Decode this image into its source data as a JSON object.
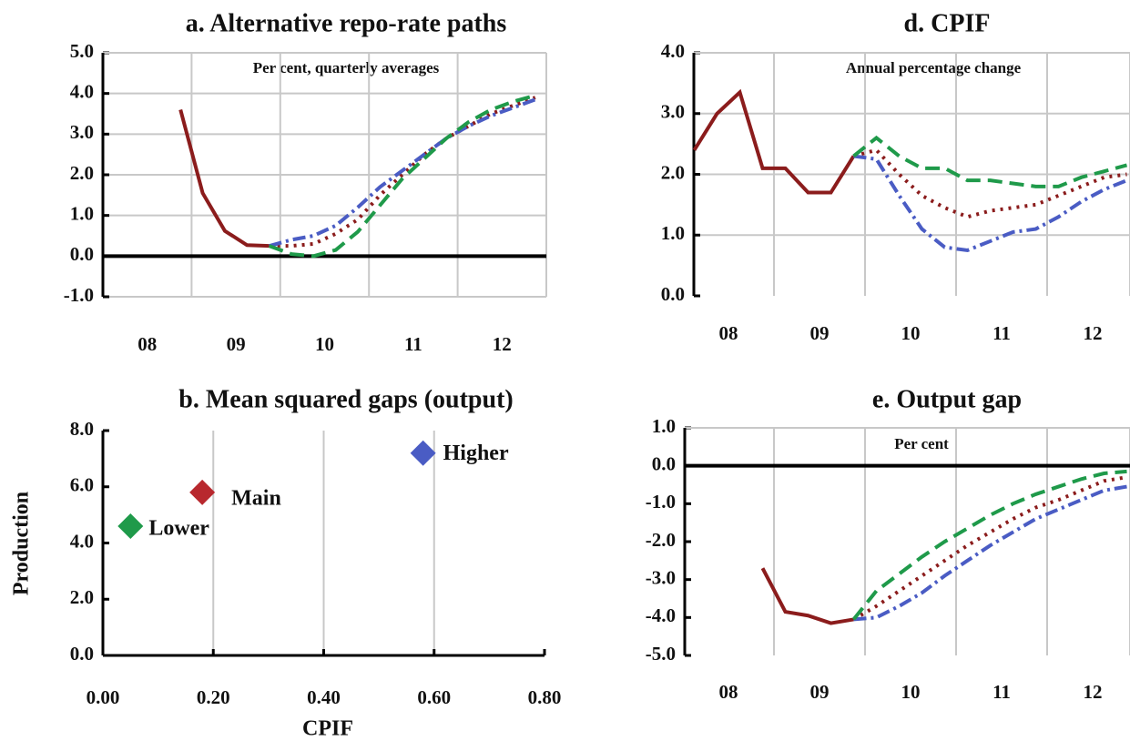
{
  "chart_data": [
    {
      "type": "line",
      "title": "a. Alternative repo-rate paths",
      "subtitle": "Per cent, quarterly averages",
      "x": [
        2008.125,
        2008.375,
        2008.625,
        2008.875,
        2009.125,
        2009.375,
        2009.625,
        2009.875,
        2010.125,
        2010.375,
        2010.625,
        2010.875,
        2011.125,
        2011.375,
        2011.625,
        2011.875,
        2012.125,
        2012.375,
        2012.625,
        2012.875
      ],
      "xlim": [
        2008,
        2013
      ],
      "xticks": [
        {
          "value": 2008.5,
          "label": "08"
        },
        {
          "value": 2009.5,
          "label": "09"
        },
        {
          "value": 2010.5,
          "label": "10"
        },
        {
          "value": 2011.5,
          "label": "11"
        },
        {
          "value": 2012.5,
          "label": "12"
        }
      ],
      "xgrid": [
        2009,
        2010,
        2011,
        2012
      ],
      "ylim": [
        -1,
        5
      ],
      "yticks": [
        {
          "value": -1,
          "label": "-1.0"
        },
        {
          "value": 0,
          "label": "0.0"
        },
        {
          "value": 1,
          "label": "1.0"
        },
        {
          "value": 2,
          "label": "2.0"
        },
        {
          "value": 3,
          "label": "3.0"
        },
        {
          "value": 4,
          "label": "4.0"
        },
        {
          "value": 5,
          "label": "5.0"
        }
      ],
      "ygrid": true,
      "zero_line": true,
      "series": [
        {
          "color": "#8b1c1c",
          "style": "solid",
          "values": [
            null,
            null,
            null,
            3.6,
            1.55,
            0.62,
            0.27,
            0.25,
            null,
            null,
            null,
            null,
            null,
            null,
            null,
            null,
            null,
            null,
            null,
            null
          ]
        },
        {
          "color": "#8b1c1c",
          "style": "dotted",
          "values": [
            null,
            null,
            null,
            null,
            null,
            null,
            null,
            0.25,
            0.25,
            0.3,
            0.55,
            0.9,
            1.5,
            2.0,
            2.5,
            2.9,
            3.2,
            3.5,
            3.7,
            3.9
          ]
        },
        {
          "color": "#4a5cc4",
          "style": "dashdot",
          "values": [
            null,
            null,
            null,
            null,
            null,
            null,
            null,
            0.25,
            0.4,
            0.5,
            0.75,
            1.2,
            1.7,
            2.1,
            2.5,
            2.9,
            3.2,
            3.45,
            3.65,
            3.85
          ]
        },
        {
          "color": "#1f9a4a",
          "style": "dashed",
          "values": [
            null,
            null,
            null,
            null,
            null,
            null,
            null,
            0.25,
            0.05,
            0.0,
            0.15,
            0.6,
            1.25,
            1.9,
            2.4,
            2.9,
            3.3,
            3.6,
            3.8,
            3.95
          ]
        }
      ]
    },
    {
      "type": "scatter",
      "title": "b. Mean squared gaps (output)",
      "x_label": "CPIF",
      "y_label": "Production",
      "xlim": [
        0,
        0.8
      ],
      "xticks": [
        {
          "value": 0,
          "label": "0.00"
        },
        {
          "value": 0.2,
          "label": "0.20"
        },
        {
          "value": 0.4,
          "label": "0.40"
        },
        {
          "value": 0.6,
          "label": "0.60"
        },
        {
          "value": 0.8,
          "label": "0.80"
        }
      ],
      "ylim": [
        0,
        8
      ],
      "yticks": [
        {
          "value": 0,
          "label": "0.0"
        },
        {
          "value": 2,
          "label": "2.0"
        },
        {
          "value": 4,
          "label": "4.0"
        },
        {
          "value": 6,
          "label": "6.0"
        },
        {
          "value": 8,
          "label": "8.0"
        }
      ],
      "xgrid": true,
      "series": [
        {
          "name": "Main",
          "color": "#b8282e",
          "x": [
            0.18
          ],
          "values": [
            5.8
          ]
        },
        {
          "name": "Lower",
          "color": "#1f9a4a",
          "x": [
            0.05
          ],
          "values": [
            4.6
          ]
        },
        {
          "name": "Higher",
          "color": "#4a5cc4",
          "x": [
            0.58
          ],
          "values": [
            7.2
          ]
        }
      ]
    },
    {
      "type": "line",
      "title": "d. CPIF",
      "subtitle": "Annual percentage change",
      "x": [
        2008.125,
        2008.375,
        2008.625,
        2008.875,
        2009.125,
        2009.375,
        2009.625,
        2009.875,
        2010.125,
        2010.375,
        2010.625,
        2010.875,
        2011.125,
        2011.375,
        2011.625,
        2011.875,
        2012.125,
        2012.375,
        2012.625,
        2012.875
      ],
      "xlim": [
        2008.12,
        2012.91
      ],
      "xticks": [
        {
          "value": 2008.5,
          "label": "08"
        },
        {
          "value": 2009.5,
          "label": "09"
        },
        {
          "value": 2010.5,
          "label": "10"
        },
        {
          "value": 2011.5,
          "label": "11"
        },
        {
          "value": 2012.5,
          "label": "12"
        }
      ],
      "xgrid": [
        2009,
        2010,
        2011,
        2012
      ],
      "ylim": [
        0,
        4
      ],
      "yticks": [
        {
          "value": 0,
          "label": "0.0"
        },
        {
          "value": 1,
          "label": "1.0"
        },
        {
          "value": 2,
          "label": "2.0"
        },
        {
          "value": 3,
          "label": "3.0"
        },
        {
          "value": 4,
          "label": "4.0"
        }
      ],
      "ygrid": true,
      "zero_line": false,
      "series": [
        {
          "color": "#8b1c1c",
          "style": "solid",
          "values": [
            2.4,
            3.0,
            3.35,
            2.1,
            2.1,
            1.7,
            1.7,
            2.3,
            null,
            null,
            null,
            null,
            null,
            null,
            null,
            null,
            null,
            null,
            null,
            null
          ]
        },
        {
          "color": "#8b1c1c",
          "style": "dotted",
          "values": [
            null,
            null,
            null,
            null,
            null,
            null,
            null,
            2.3,
            2.4,
            2.0,
            1.65,
            1.45,
            1.3,
            1.4,
            1.45,
            1.5,
            1.65,
            1.8,
            1.95,
            2.0
          ]
        },
        {
          "color": "#4a5cc4",
          "style": "dashdot",
          "values": [
            null,
            null,
            null,
            null,
            null,
            null,
            null,
            2.3,
            2.25,
            1.65,
            1.1,
            0.8,
            0.75,
            0.9,
            1.05,
            1.1,
            1.3,
            1.55,
            1.75,
            1.9
          ]
        },
        {
          "color": "#1f9a4a",
          "style": "dashed",
          "values": [
            null,
            null,
            null,
            null,
            null,
            null,
            null,
            2.3,
            2.6,
            2.3,
            2.1,
            2.1,
            1.9,
            1.9,
            1.85,
            1.8,
            1.8,
            1.95,
            2.05,
            2.15
          ]
        }
      ]
    },
    {
      "type": "line",
      "title": "e. Output gap",
      "subtitle": "Per cent",
      "x": [
        2008.125,
        2008.375,
        2008.625,
        2008.875,
        2009.125,
        2009.375,
        2009.625,
        2009.875,
        2010.125,
        2010.375,
        2010.625,
        2010.875,
        2011.125,
        2011.375,
        2011.625,
        2011.875,
        2012.125,
        2012.375,
        2012.625,
        2012.875
      ],
      "xlim": [
        2008.02,
        2012.91
      ],
      "xticks": [
        {
          "value": 2008.5,
          "label": "08"
        },
        {
          "value": 2009.5,
          "label": "09"
        },
        {
          "value": 2010.5,
          "label": "10"
        },
        {
          "value": 2011.5,
          "label": "11"
        },
        {
          "value": 2012.5,
          "label": "12"
        }
      ],
      "xgrid": [
        2009,
        2010,
        2011,
        2012
      ],
      "ylim": [
        -5,
        1
      ],
      "yticks": [
        {
          "value": -5,
          "label": "-5.0"
        },
        {
          "value": -4,
          "label": "-4.0"
        },
        {
          "value": -3,
          "label": "-3.0"
        },
        {
          "value": -2,
          "label": "-2.0"
        },
        {
          "value": -1,
          "label": "-1.0"
        },
        {
          "value": 0,
          "label": "0.0"
        },
        {
          "value": 1,
          "label": "1.0"
        }
      ],
      "ygrid": false,
      "zero_line": true,
      "series": [
        {
          "color": "#8b1c1c",
          "style": "solid",
          "values": [
            null,
            null,
            null,
            -2.7,
            -3.85,
            -3.95,
            -4.15,
            -4.05,
            null,
            null,
            null,
            null,
            null,
            null,
            null,
            null,
            null,
            null,
            null,
            null
          ]
        },
        {
          "color": "#8b1c1c",
          "style": "dotted",
          "values": [
            null,
            null,
            null,
            null,
            null,
            null,
            null,
            -4.05,
            -3.7,
            -3.3,
            -2.9,
            -2.5,
            -2.1,
            -1.75,
            -1.4,
            -1.1,
            -0.9,
            -0.65,
            -0.4,
            -0.3
          ]
        },
        {
          "color": "#4a5cc4",
          "style": "dashdot",
          "values": [
            null,
            null,
            null,
            null,
            null,
            null,
            null,
            -4.05,
            -4.0,
            -3.7,
            -3.35,
            -2.9,
            -2.5,
            -2.1,
            -1.75,
            -1.4,
            -1.15,
            -0.9,
            -0.65,
            -0.55
          ]
        },
        {
          "color": "#1f9a4a",
          "style": "dashed",
          "values": [
            null,
            null,
            null,
            null,
            null,
            null,
            null,
            -4.05,
            -3.3,
            -2.85,
            -2.4,
            -2.0,
            -1.65,
            -1.3,
            -1.0,
            -0.75,
            -0.55,
            -0.35,
            -0.2,
            -0.15
          ]
        }
      ]
    }
  ]
}
